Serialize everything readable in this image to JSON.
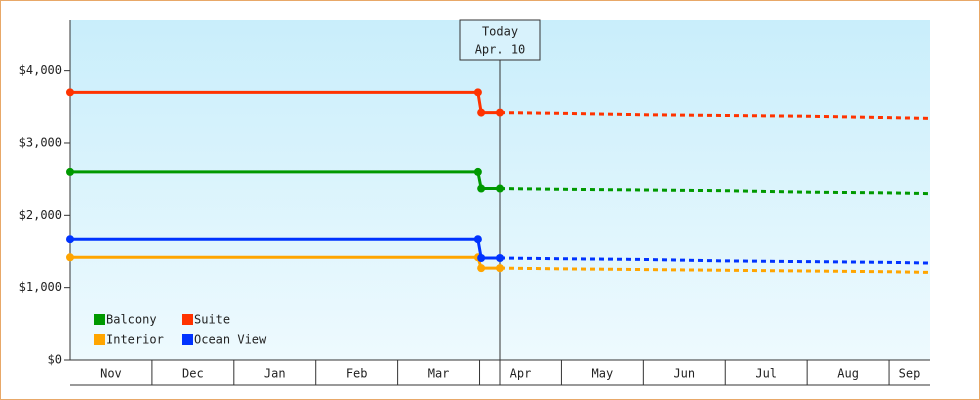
{
  "chart_data": {
    "type": "line",
    "x": [
      0,
      4.98,
      5.02,
      5.25,
      6,
      7,
      8,
      9,
      10,
      10.5
    ],
    "xlim": [
      0,
      10.5
    ],
    "xticks": [
      {
        "value": 0.5,
        "label": "Nov"
      },
      {
        "value": 1.5,
        "label": "Dec"
      },
      {
        "value": 2.5,
        "label": "Jan"
      },
      {
        "value": 3.5,
        "label": "Feb"
      },
      {
        "value": 4.5,
        "label": "Mar"
      },
      {
        "value": 5.5,
        "label": "Apr"
      },
      {
        "value": 6.5,
        "label": "May"
      },
      {
        "value": 7.5,
        "label": "Jun"
      },
      {
        "value": 8.5,
        "label": "Jul"
      },
      {
        "value": 9.5,
        "label": "Aug"
      },
      {
        "value": 10.25,
        "label": "Sep"
      }
    ],
    "ylim": [
      0,
      4700
    ],
    "yticks": [
      {
        "value": 0,
        "label": "$0"
      },
      {
        "value": 1000,
        "label": "$1,000"
      },
      {
        "value": 2000,
        "label": "$2,000"
      },
      {
        "value": 3000,
        "label": "$3,000"
      },
      {
        "value": 4000,
        "label": "$4,000"
      }
    ],
    "annotation": {
      "x": 5.25,
      "text": [
        "Today",
        "Apr. 10"
      ]
    },
    "series": [
      {
        "name": "Balcony",
        "color": "#009900",
        "values": [
          2600,
          2600,
          2370,
          2370,
          2360,
          2350,
          2340,
          2320,
          2310,
          2300
        ]
      },
      {
        "name": "Suite",
        "color": "#ff3300",
        "values": [
          3700,
          3700,
          3420,
          3420,
          3410,
          3390,
          3380,
          3370,
          3350,
          3340
        ]
      },
      {
        "name": "Interior",
        "color": "#ffa500",
        "values": [
          1420,
          1420,
          1270,
          1270,
          1260,
          1250,
          1240,
          1230,
          1220,
          1210
        ]
      },
      {
        "name": "Ocean View",
        "color": "#0033ff",
        "values": [
          1670,
          1670,
          1410,
          1410,
          1400,
          1390,
          1370,
          1360,
          1350,
          1340
        ]
      }
    ]
  }
}
